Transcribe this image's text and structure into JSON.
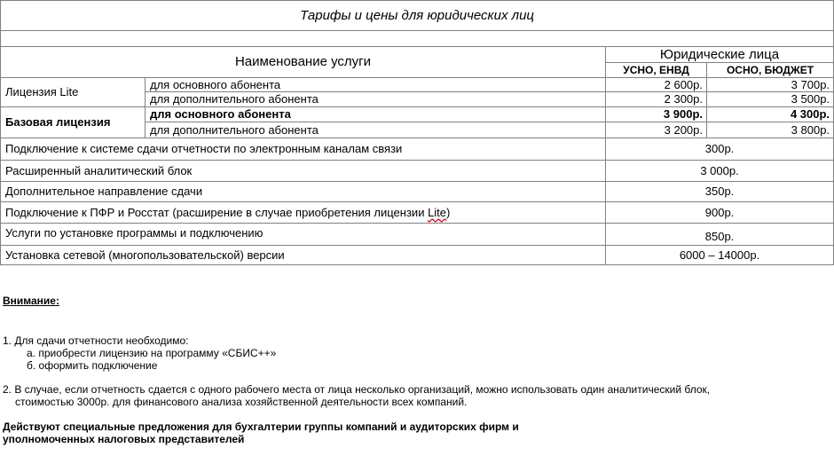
{
  "table": {
    "title": "Тарифы и цены для юридических лиц",
    "header": {
      "service": "Наименование услуги",
      "group": "Юридические лица",
      "col1": "УСНО, ЕНВД",
      "col2": "ОСНО, БЮДЖЕТ"
    },
    "lite": {
      "name": "Лицензия Lite",
      "rows": [
        {
          "label": "для основного абонента",
          "p1": "2 600р.",
          "p2": "3 700р."
        },
        {
          "label": "для дополнительного абонента",
          "p1": "2 300р.",
          "p2": "3 500р."
        }
      ]
    },
    "base": {
      "name": "Базовая лицензия",
      "rows": [
        {
          "label": "для основного абонента",
          "p1": "3 900р.",
          "p2": "4 300р."
        },
        {
          "label": "для дополнительного абонента",
          "p1": "3 200р.",
          "p2": "3 800р."
        }
      ]
    },
    "services": [
      {
        "name": "Подключение к системе сдачи отчетности по электронным каналам связи",
        "price": "300р."
      },
      {
        "name": "Расширенный аналитический блок",
        "price": "3 000р."
      },
      {
        "name": "Дополнительное направление сдачи",
        "price": "350р."
      },
      {
        "name": "Подключение к ПФР и Росстат (расширение в случае приобретения лицензии ",
        "name_tail": "Lite",
        "name_end": ")",
        "price": "900р."
      },
      {
        "name": "Услуги по установке программы и подключению",
        "price": "850р."
      },
      {
        "name": "Установка сетевой (многопользовательской) версии",
        "price": "6000 – 14000р."
      }
    ]
  },
  "notes": {
    "attention": "Внимание:",
    "item1": "1. Для сдачи отчетности необходимо:",
    "item1a": "а. приобрести лицензию на программу «СБИС++»",
    "item1b": "б. оформить подключение",
    "item2_line1": "2. В случае, если отчетность сдается с одного рабочего места от лица несколько организаций, можно использовать один аналитический блок,",
    "item2_line2": "стоимостью 3000р. для финансового анализа хозяйственной деятельности всех компаний.",
    "special_line1": "Действуют специальные предложения для бухгалтерии группы компаний и аудиторских фирм и",
    "special_line2": "уполномоченных налоговых представителей"
  }
}
